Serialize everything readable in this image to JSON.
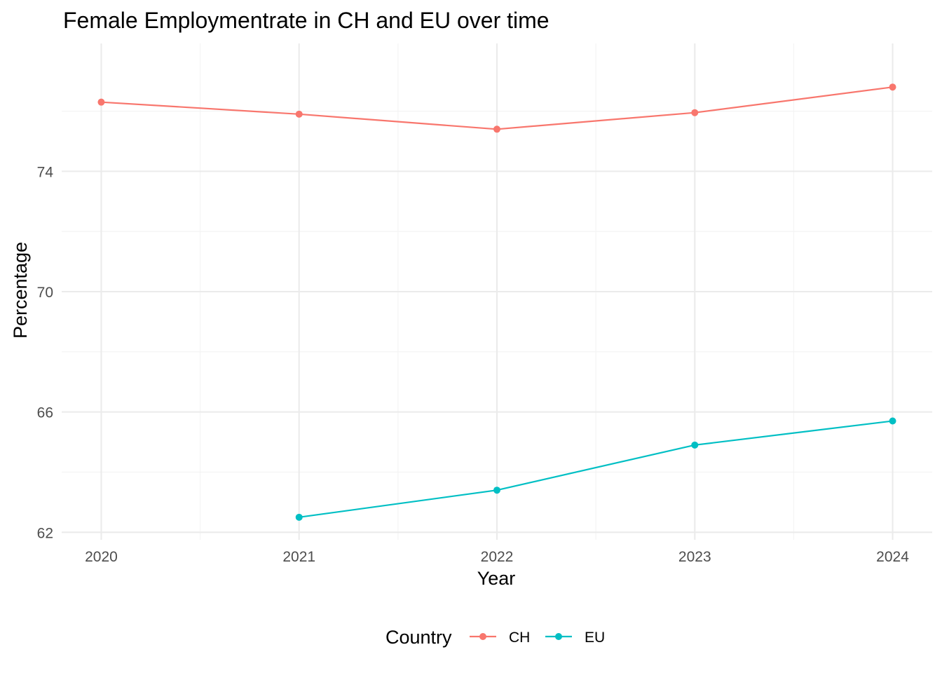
{
  "chart_data": {
    "type": "line",
    "title": "Female Employmentrate in CH and EU over time",
    "xlabel": "Year",
    "ylabel": "Percentage",
    "x": [
      2020,
      2021,
      2022,
      2023,
      2024
    ],
    "x_ticks": [
      "2020",
      "2021",
      "2022",
      "2023",
      "2024"
    ],
    "y_ticks": [
      "62",
      "66",
      "70",
      "74"
    ],
    "xlim": [
      2019.8,
      2024.2
    ],
    "ylim": [
      61.75,
      78.25
    ],
    "grid": true,
    "legend": {
      "title": "Country",
      "placement": "bottom",
      "entries": [
        "CH",
        "EU"
      ]
    },
    "series": [
      {
        "name": "CH",
        "color": "#F8766D",
        "values": [
          76.3,
          75.9,
          75.4,
          75.95,
          76.8
        ]
      },
      {
        "name": "EU",
        "color": "#00BFC4",
        "values": [
          null,
          62.5,
          63.4,
          64.9,
          65.7
        ]
      }
    ]
  }
}
